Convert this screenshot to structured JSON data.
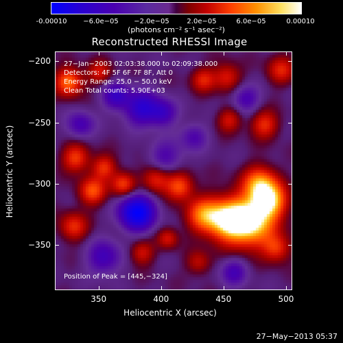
{
  "colorbar": {
    "tick_labels": [
      "-0.00010",
      "−6.0e−05",
      "−2.0e−05",
      "2.0e−05",
      "6.0e−05",
      "0.00010"
    ],
    "unit_label": "(photons cm⁻² s⁻¹ asec⁻²)",
    "range": [
      -0.0001,
      0.0001
    ]
  },
  "info": {
    "time_range": "27−Jan−2003 02:03:38.000 to 02:09:38.000",
    "detectors": "Detectors: 4F 5F 6F 7F 8F, Att 0",
    "energy": "Energy Range: 25.0 − 50.0 keV",
    "clean": "Clean     Total counts: 5.90E+03",
    "peak": "Position of Peak = [445,−324]"
  },
  "footer": {
    "stamp": "27−May−2013 05:37"
  },
  "chart_data": {
    "type": "heatmap",
    "title": "Reconstructed RHESSI Image",
    "xlabel": "Heliocentric X (arcsec)",
    "ylabel": "Heliocentric Y (arcsec)",
    "xlim": [
      315,
      505
    ],
    "ylim": [
      -387,
      -192
    ],
    "xticks": [
      350,
      400,
      450,
      500
    ],
    "yticks": [
      -200,
      -250,
      -300,
      -350
    ],
    "peak_position": [
      445,
      -324
    ],
    "colorscale": [
      "#0000ff",
      "#4a00b0",
      "#6a2a90",
      "#800000",
      "#ff4000",
      "#ff9000",
      "#ffffff"
    ],
    "grid": false
  }
}
